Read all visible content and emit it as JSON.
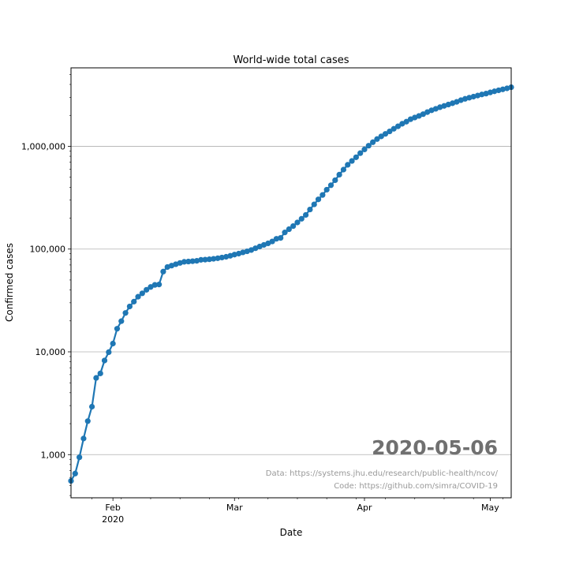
{
  "chart_data": {
    "type": "line",
    "title": "World-wide total cases",
    "xlabel": "Date",
    "ylabel": "Confirmed cases",
    "yscale": "log",
    "ylim": [
      380,
      5800000
    ],
    "xlim": [
      "2020-01-22",
      "2020-05-06"
    ],
    "grid": "horizontal major lines only",
    "line_color": "#1f77b4",
    "marker": "circle",
    "x_ticks": [
      {
        "date": "2020-02-01",
        "label": "Feb",
        "sublabel": "2020"
      },
      {
        "date": "2020-03-01",
        "label": "Mar",
        "sublabel": ""
      },
      {
        "date": "2020-04-01",
        "label": "Apr",
        "sublabel": ""
      },
      {
        "date": "2020-05-01",
        "label": "May",
        "sublabel": ""
      }
    ],
    "y_ticks": [
      {
        "value": 1000,
        "label": "1,000"
      },
      {
        "value": 10000,
        "label": "10,000"
      },
      {
        "value": 100000,
        "label": "100,000"
      },
      {
        "value": 1000000,
        "label": "1,000,000"
      }
    ],
    "start_date": "2020-01-22",
    "values": [
      555,
      654,
      941,
      1434,
      2118,
      2927,
      5578,
      6166,
      8234,
      9927,
      12038,
      16787,
      19881,
      23892,
      27635,
      30794,
      34391,
      37120,
      40150,
      42762,
      44802,
      45221,
      60368,
      66885,
      69030,
      71224,
      73258,
      75136,
      75639,
      76197,
      76819,
      78572,
      78958,
      79561,
      80406,
      81388,
      82746,
      84112,
      86011,
      88369,
      90306,
      92840,
      95120,
      97886,
      101801,
      105847,
      109821,
      113590,
      118620,
      125875,
      128343,
      145193,
      156097,
      167449,
      181546,
      197168,
      214915,
      242713,
      272167,
      304528,
      335955,
      378287,
      418041,
      467653,
      529591,
      593291,
      660706,
      720117,
      782365,
      857487,
      932605,
      1013466,
      1095917,
      1176060,
      1249754,
      1321481,
      1396476,
      1480202,
      1565278,
      1657526,
      1735650,
      1835467,
      1905192,
      1975581,
      2055506,
      2151872,
      2239723,
      2316850,
      2400986,
      2471759,
      2548585,
      2623960,
      2707742,
      2810325,
      2896746,
      2971475,
      3041764,
      3116398,
      3193886,
      3256846,
      3343777,
      3427584,
      3506729,
      3583055,
      3662691,
      3755341
    ]
  },
  "annotation": {
    "date_stamp": "2020-05-06",
    "date_stamp_color": "#707070",
    "data_source": "Data: https://systems.jhu.edu/research/public-health/ncov/",
    "code_source": "Code: https://github.com/simra/COVID-19"
  }
}
